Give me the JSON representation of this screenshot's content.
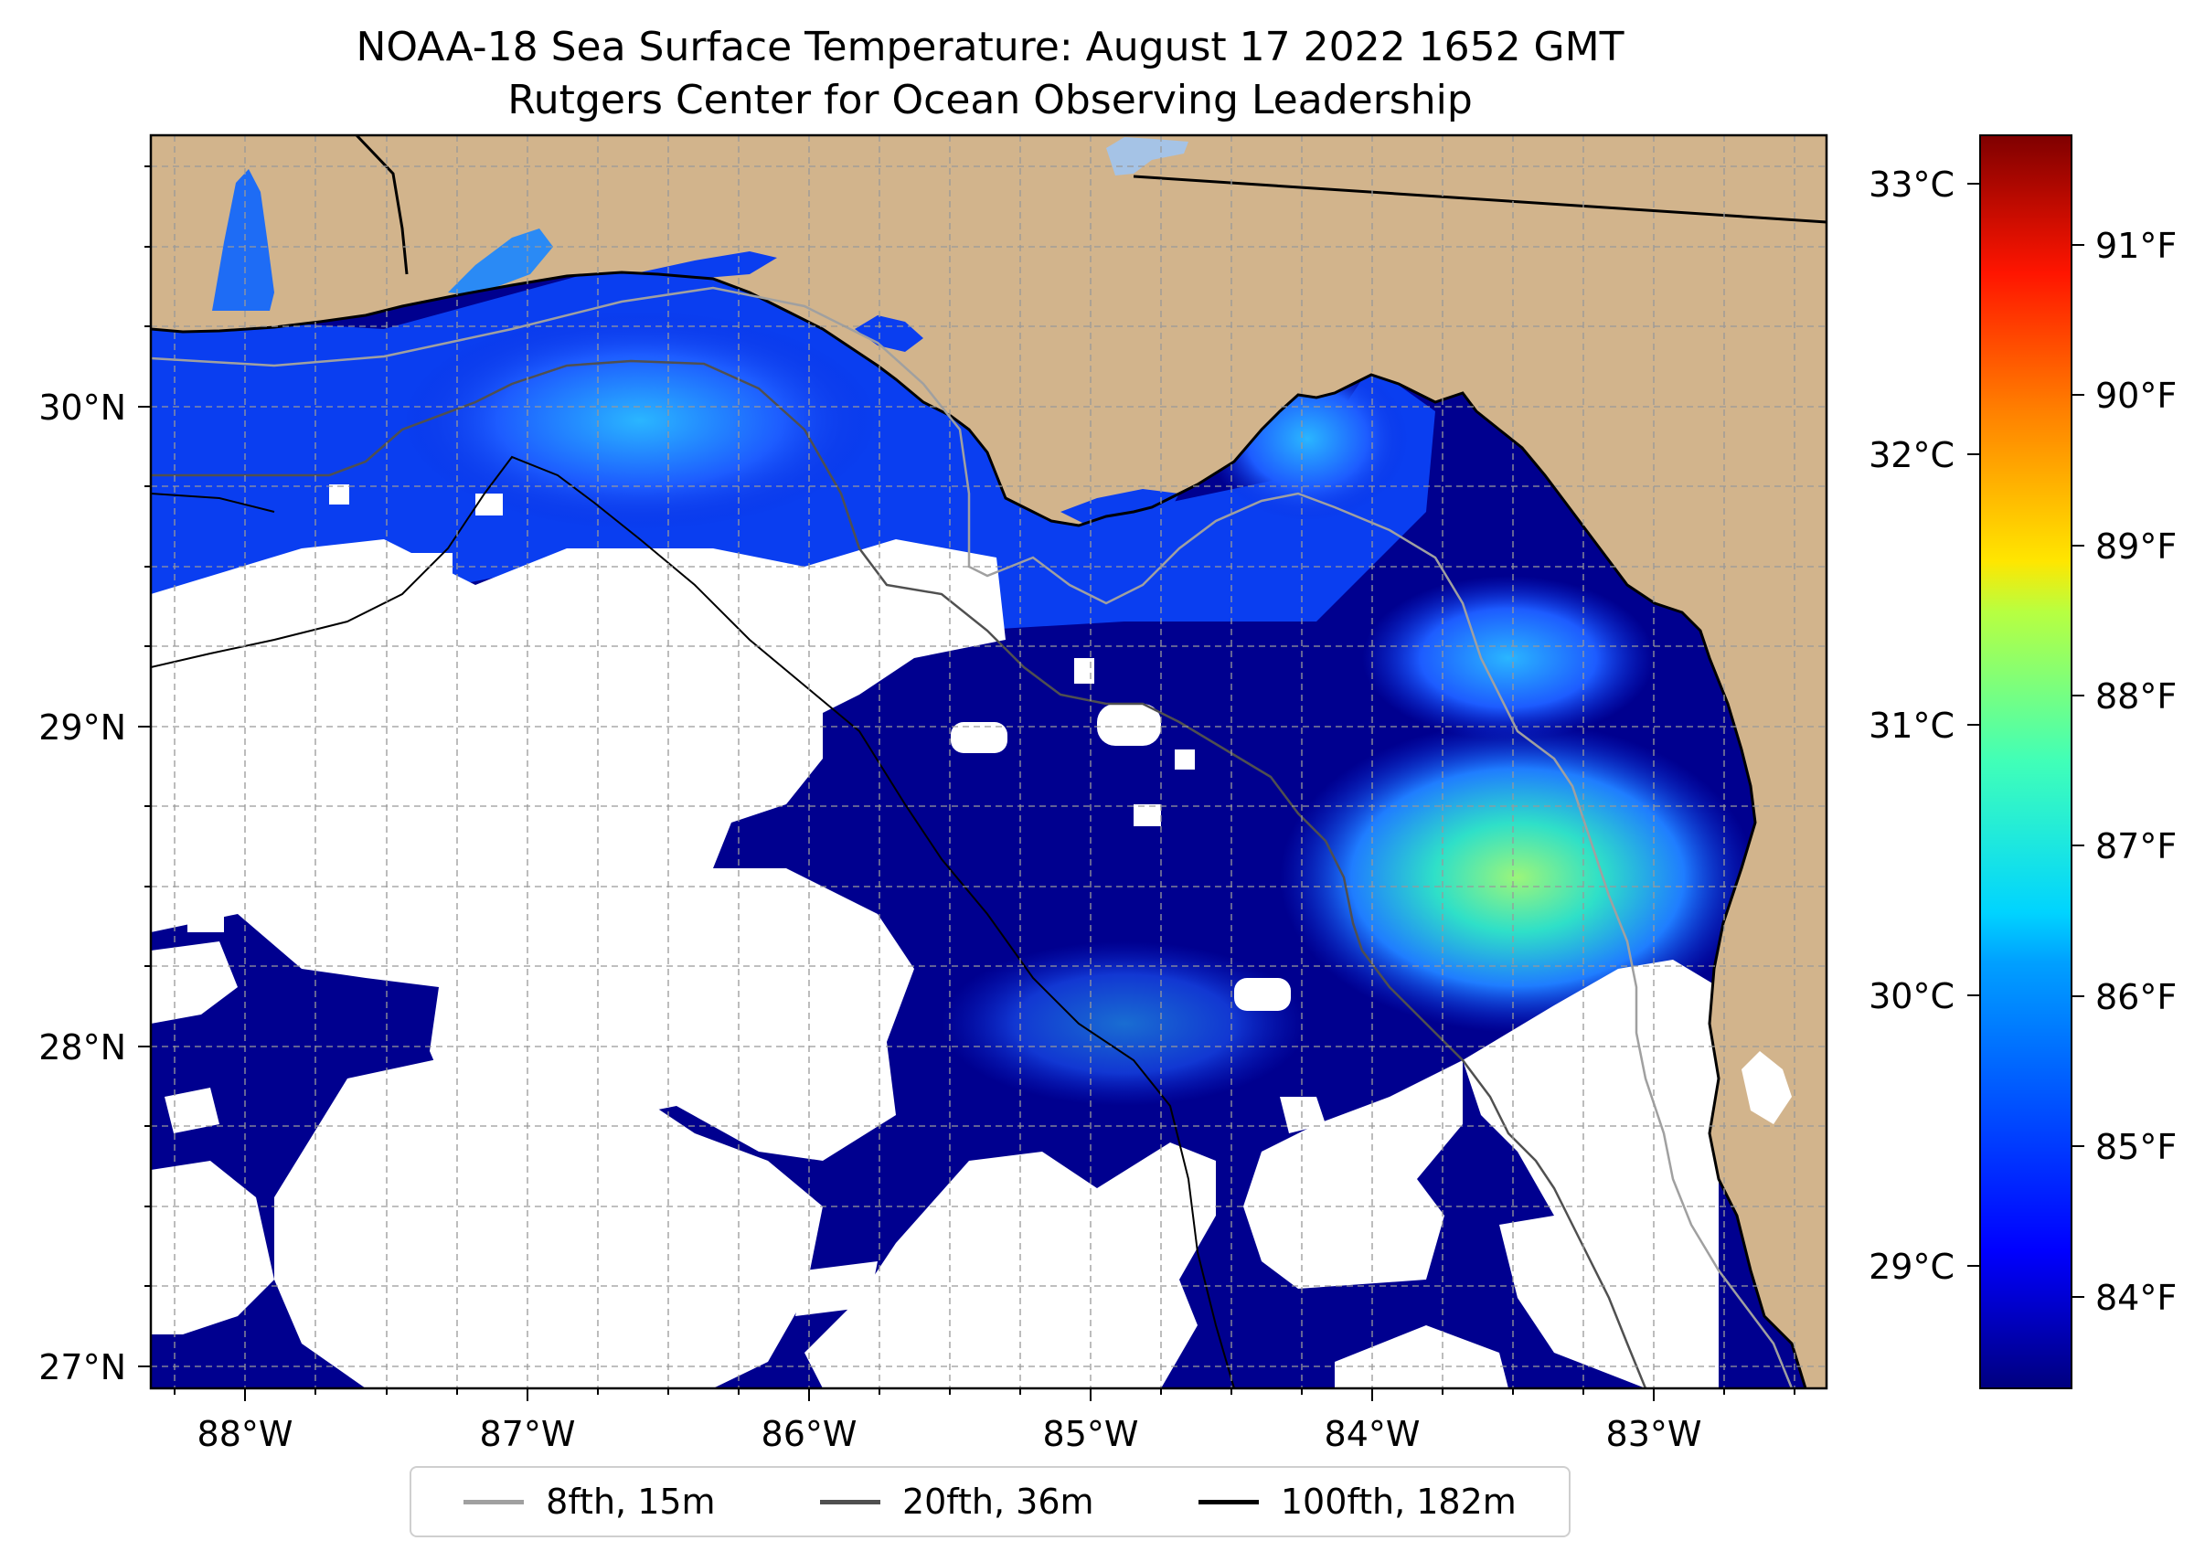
{
  "title": "NOAA-18 Sea Surface Temperature: August 17 2022 1652 GMT",
  "subtitle": "Rutgers Center for Ocean Observing Leadership",
  "map": {
    "lon_ticks": [
      "88°W",
      "87°W",
      "86°W",
      "85°W",
      "84°W",
      "83°W"
    ],
    "lat_ticks": [
      "30°N",
      "29°N",
      "28°N",
      "27°N"
    ],
    "lon_range": [
      -88.33,
      -82.37
    ],
    "lat_range": [
      26.93,
      30.85
    ],
    "land_color": "#d2b48c",
    "no_data_color": "#ffffff",
    "gridlines": "dashed"
  },
  "colorbar": {
    "celsius_ticks": [
      "33°C",
      "32°C",
      "31°C",
      "30°C",
      "29°C"
    ],
    "fahrenheit_ticks": [
      "91°F",
      "90°F",
      "89°F",
      "88°F",
      "87°F",
      "86°F",
      "85°F",
      "84°F"
    ],
    "colormap": "jet",
    "celsius_range": [
      28.5,
      33.2
    ]
  },
  "legend": {
    "entries": [
      {
        "label": "8fth, 15m",
        "color": "#a0a0a0"
      },
      {
        "label": "20fth, 36m",
        "color": "#505050"
      },
      {
        "label": "100fth, 182m",
        "color": "#000000"
      }
    ]
  }
}
